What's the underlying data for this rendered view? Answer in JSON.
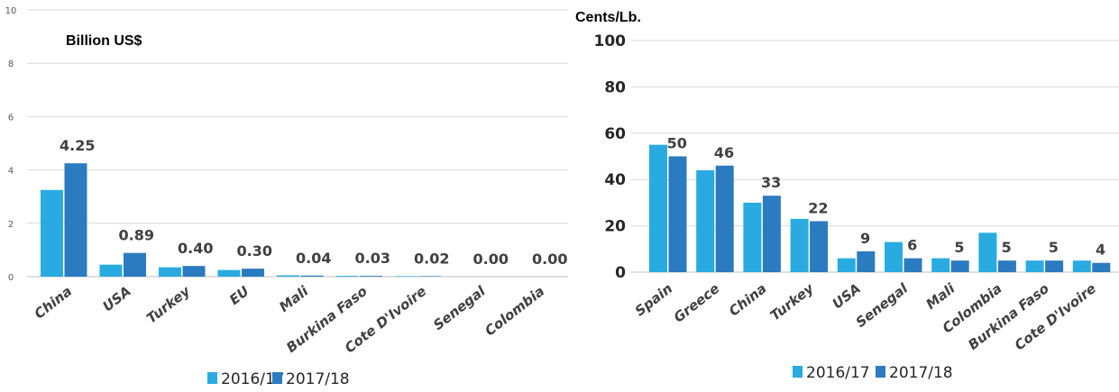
{
  "chart_data": [
    {
      "type": "bar",
      "title": "",
      "unit_label": "Billion US$",
      "xlabel": "",
      "ylabel": "",
      "ylim": [
        0,
        10
      ],
      "yticks": [
        0,
        2,
        4,
        6,
        8,
        10
      ],
      "categories": [
        "China",
        "USA",
        "Turkey",
        "EU",
        "Mali",
        "Burkina Faso",
        "Cote D'Ivoire",
        "Senegal",
        "Colombia"
      ],
      "series": [
        {
          "name": "2016/17",
          "color": "#29ABE2",
          "values": [
            3.25,
            0.45,
            0.35,
            0.25,
            0.05,
            0.03,
            0.02,
            0.0,
            0.0
          ]
        },
        {
          "name": "2017/18",
          "color": "#2B7BC0",
          "values": [
            4.25,
            0.89,
            0.4,
            0.3,
            0.04,
            0.03,
            0.02,
            0.0,
            0.0
          ]
        }
      ],
      "data_labels": [
        "4.25",
        "0.89",
        "0.40",
        "0.30",
        "0.04",
        "0.03",
        "0.02",
        "0.00",
        "0.00"
      ],
      "grid": true,
      "legend": "bottom"
    },
    {
      "type": "bar",
      "title": "",
      "unit_label": "Cents/Lb.",
      "xlabel": "",
      "ylabel": "",
      "ylim": [
        0,
        100
      ],
      "yticks": [
        0,
        20,
        40,
        60,
        80,
        100
      ],
      "categories": [
        "Spain",
        "Greece",
        "China",
        "Turkey",
        "USA",
        "Senegal",
        "Mali",
        "Colombia",
        "Burkina Faso",
        "Cote D'Ivoire"
      ],
      "series": [
        {
          "name": "2016/17",
          "color": "#29ABE2",
          "values": [
            55,
            44,
            30,
            23,
            6,
            13,
            6,
            17,
            5,
            5
          ]
        },
        {
          "name": "2017/18",
          "color": "#2B7BC0",
          "values": [
            50,
            46,
            33,
            22,
            9,
            6,
            5,
            5,
            5,
            4
          ]
        }
      ],
      "data_labels": [
        "50",
        "46",
        "33",
        "22",
        "9",
        "6",
        "5",
        "5",
        "5",
        "4"
      ],
      "grid": true,
      "legend": "bottom"
    }
  ]
}
